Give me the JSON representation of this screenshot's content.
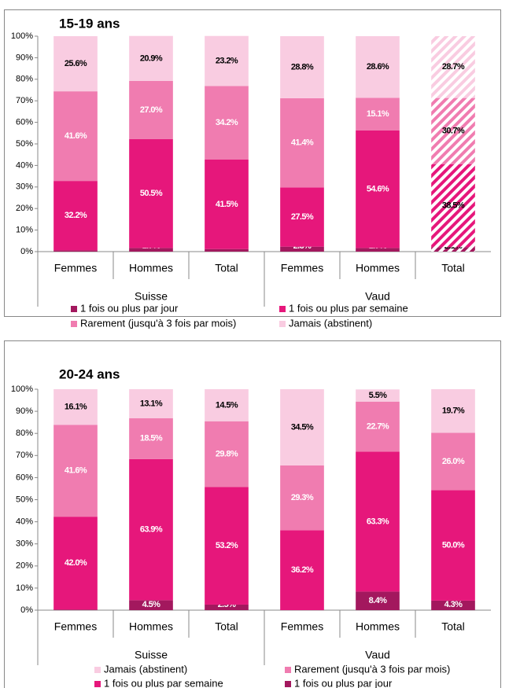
{
  "chart_data": [
    {
      "type": "stacked_bar",
      "title": "15-19 ans",
      "categories": [
        "Femmes",
        "Hommes",
        "Total",
        "Femmes",
        "Hommes",
        "Total"
      ],
      "groups": [
        {
          "name": "Suisse",
          "size": 3
        },
        {
          "name": "Vaud",
          "size": 3
        }
      ],
      "hatched": [
        false,
        false,
        false,
        false,
        false,
        true
      ],
      "stack_direction": "bottom-up",
      "series": [
        {
          "name": "1 fois ou plus par jour",
          "color": "#a3185e",
          "label_color": "#ffffff",
          "values": [
            0.6,
            1.7,
            1.2,
            2.3,
            1.7,
            2.1
          ],
          "value_labels": [
            "0.6%",
            "1.7%",
            "1.2%",
            "2.3%",
            "1.7%",
            "2.1%"
          ]
        },
        {
          "name": "1 fois ou plus par semaine",
          "color": "#e6177b",
          "label_color": "#ffffff",
          "values": [
            32.2,
            50.5,
            41.5,
            27.5,
            54.6,
            38.5
          ],
          "value_labels": [
            "32.2%",
            "50.5%",
            "41.5%",
            "27.5%",
            "54.6%",
            "38.5%"
          ]
        },
        {
          "name": "Rarement (jusqu'à 3 fois par mois)",
          "color": "#f07cb0",
          "label_color": "#ffffff",
          "values": [
            41.6,
            27.0,
            34.2,
            41.4,
            15.1,
            30.7
          ],
          "value_labels": [
            "41.6%",
            "27.0%",
            "34.2%",
            "41.4%",
            "15.1%",
            "30.7%"
          ]
        },
        {
          "name": "Jamais (abstinent)",
          "color": "#f9cce1",
          "label_color": "#000000",
          "values": [
            25.6,
            20.9,
            23.2,
            28.8,
            28.6,
            28.7
          ],
          "value_labels": [
            "25.6%",
            "20.9%",
            "23.2%",
            "28.8%",
            "28.6%",
            "28.7%"
          ]
        }
      ],
      "ylim": [
        0,
        100
      ],
      "yticks": [
        {
          "value": 0,
          "label": "0%"
        },
        {
          "value": 10,
          "label": "10%"
        },
        {
          "value": 20,
          "label": "20%"
        },
        {
          "value": 30,
          "label": "30%"
        },
        {
          "value": 40,
          "label": "40%"
        },
        {
          "value": 50,
          "label": "50%"
        },
        {
          "value": 60,
          "label": "60%"
        },
        {
          "value": 70,
          "label": "70%"
        },
        {
          "value": 80,
          "label": "80%"
        },
        {
          "value": 90,
          "label": "90%"
        },
        {
          "value": 100,
          "label": "100%"
        }
      ]
    },
    {
      "type": "stacked_bar",
      "title": "20-24 ans",
      "categories": [
        "Femmes",
        "Hommes",
        "Total",
        "Femmes",
        "Hommes",
        "Total"
      ],
      "groups": [
        {
          "name": "Suisse",
          "size": 3
        },
        {
          "name": "Vaud",
          "size": 3
        }
      ],
      "hatched": [
        false,
        false,
        false,
        false,
        false,
        false
      ],
      "stack_direction": "top-down",
      "series": [
        {
          "name": "Jamais (abstinent)",
          "color": "#f9cce1",
          "label_color": "#000000",
          "values": [
            16.1,
            13.1,
            14.5,
            34.5,
            5.5,
            19.7
          ],
          "value_labels": [
            "16.1%",
            "13.1%",
            "14.5%",
            "34.5%",
            "5.5%",
            "19.7%"
          ]
        },
        {
          "name": "Rarement (jusqu'à 3 fois par mois)",
          "color": "#f07cb0",
          "label_color": "#ffffff",
          "values": [
            41.6,
            18.5,
            29.8,
            29.3,
            22.7,
            26.0
          ],
          "value_labels": [
            "41.6%",
            "18.5%",
            "29.8%",
            "29.3%",
            "22.7%",
            "26.0%"
          ]
        },
        {
          "name": "1 fois ou plus par semaine",
          "color": "#e6177b",
          "label_color": "#ffffff",
          "values": [
            42.0,
            63.9,
            53.2,
            36.2,
            63.3,
            50.0
          ],
          "value_labels": [
            "42.0%",
            "63.9%",
            "53.2%",
            "36.2%",
            "63.3%",
            "50.0%"
          ]
        },
        {
          "name": "1 fois ou plus par jour",
          "color": "#a3185e",
          "label_color": "#ffffff",
          "values": [
            0.3,
            4.5,
            2.5,
            0.0,
            8.4,
            4.3
          ],
          "value_labels": [
            "0.3%",
            "4.5%",
            "2.5%",
            "0.0%",
            "8.4%",
            "4.3%"
          ]
        }
      ],
      "ylim": [
        0,
        100
      ],
      "yticks": [
        {
          "value": 0,
          "label": "0%"
        },
        {
          "value": 10,
          "label": "10%"
        },
        {
          "value": 20,
          "label": "20%"
        },
        {
          "value": 30,
          "label": "30%"
        },
        {
          "value": 40,
          "label": "40%"
        },
        {
          "value": 50,
          "label": "50%"
        },
        {
          "value": 60,
          "label": "60%"
        },
        {
          "value": 70,
          "label": "70%"
        },
        {
          "value": 80,
          "label": "80%"
        },
        {
          "value": 90,
          "label": "90%"
        },
        {
          "value": 100,
          "label": "100%"
        }
      ]
    }
  ]
}
